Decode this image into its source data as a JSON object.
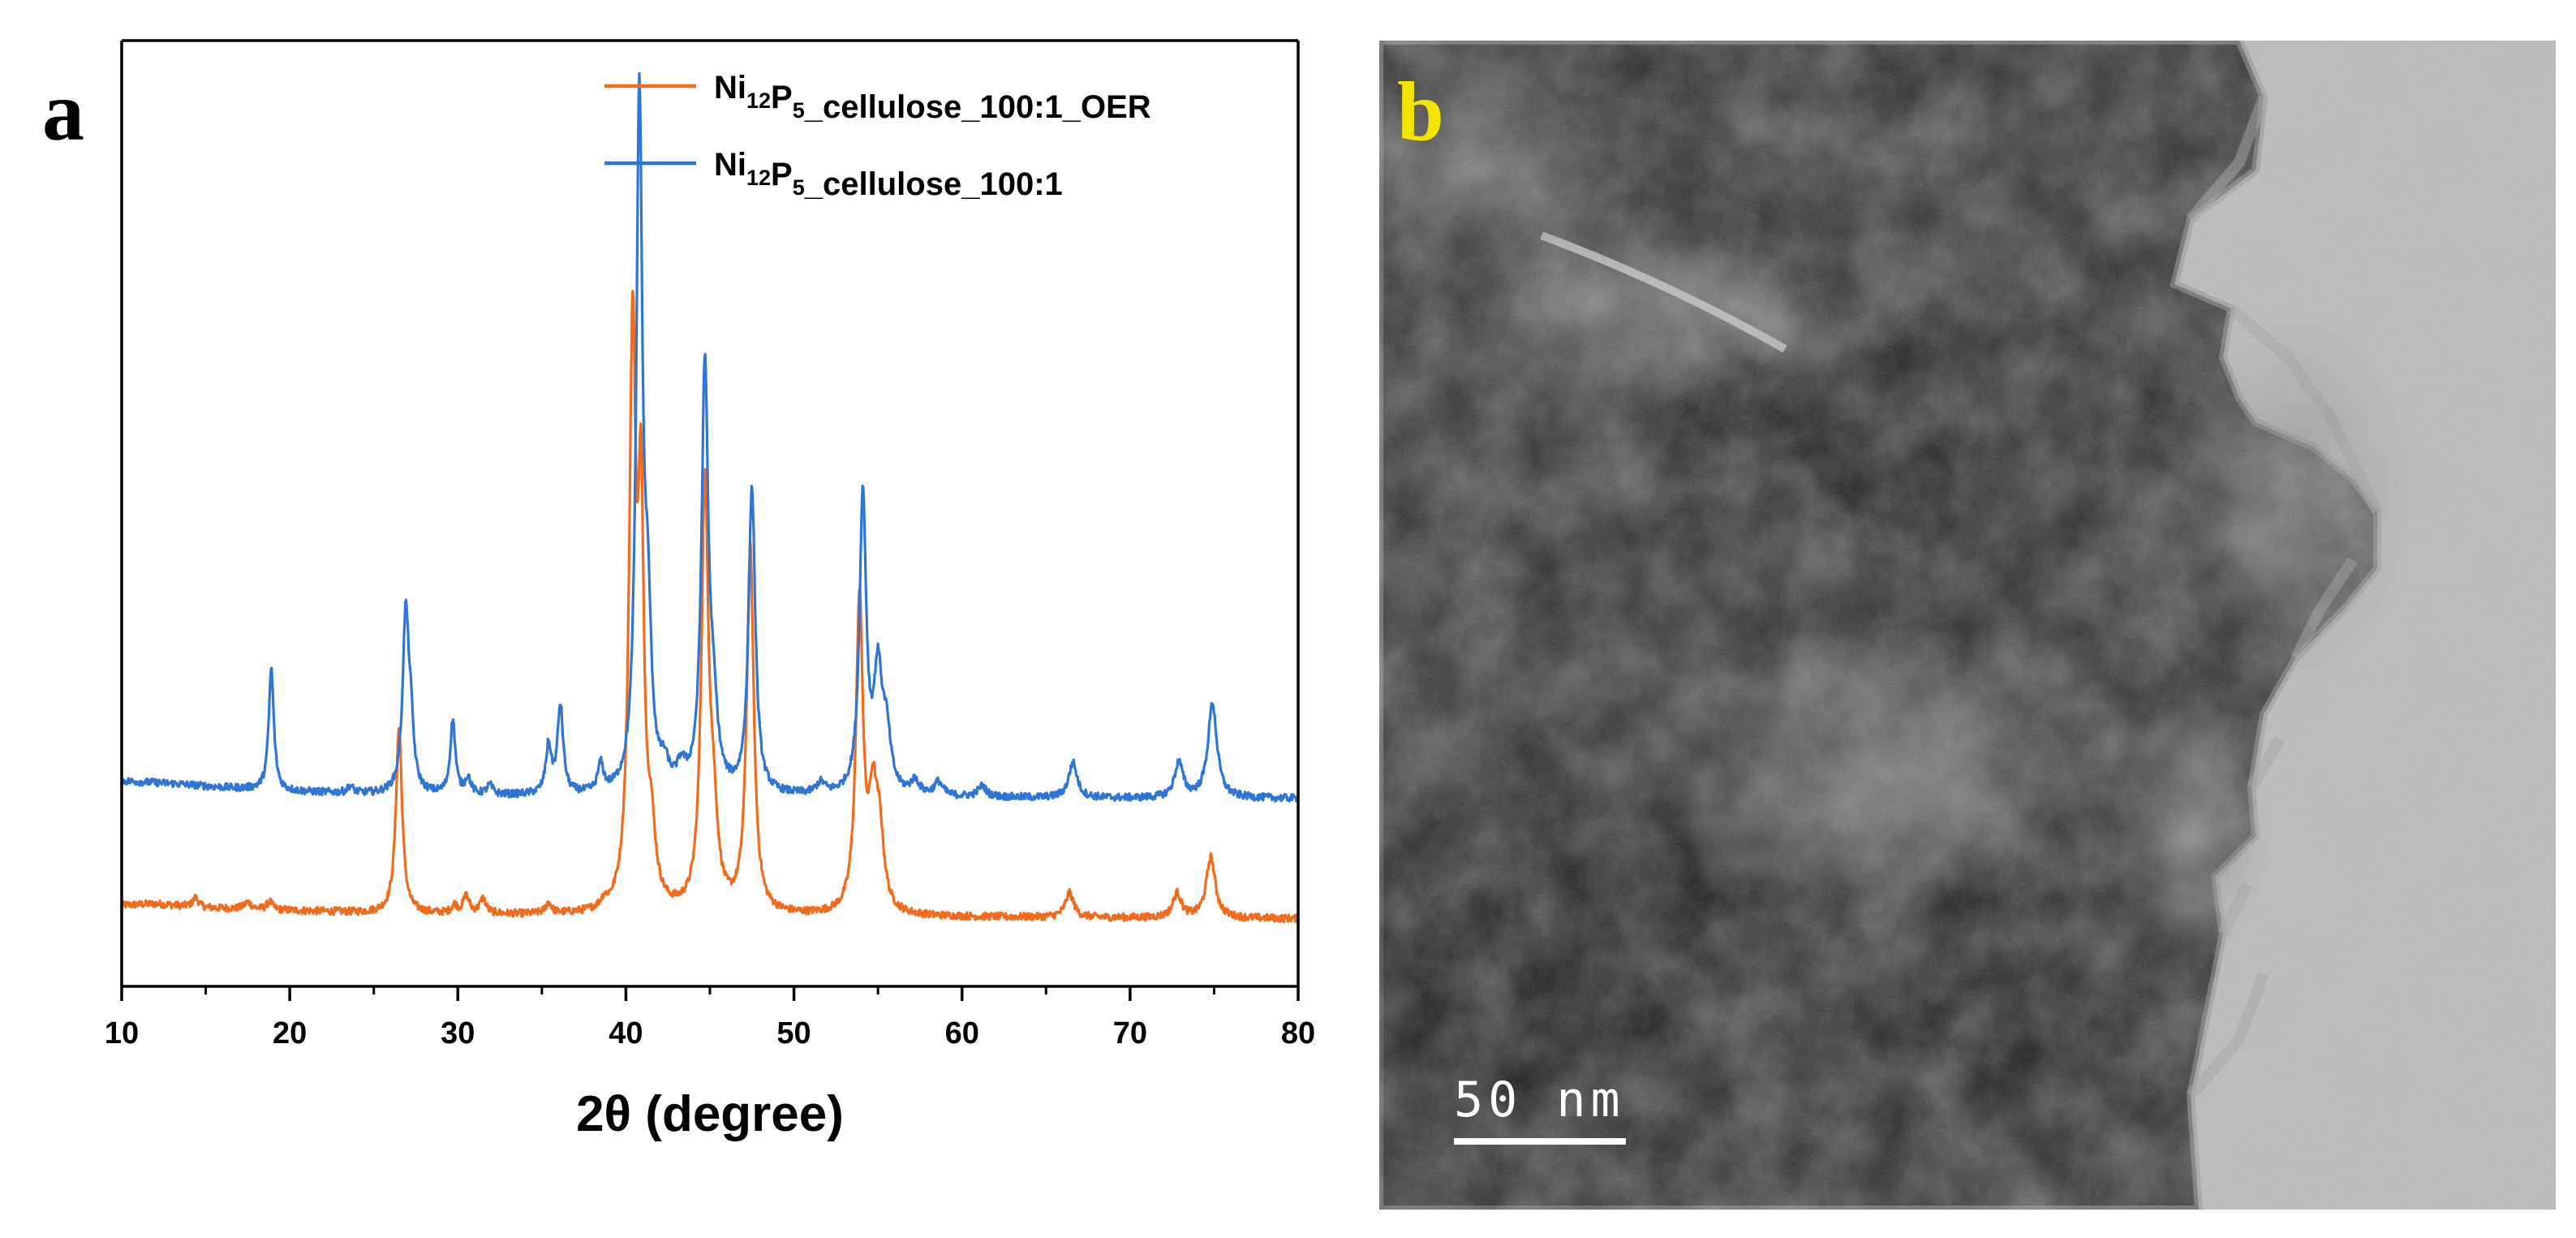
{
  "panels": {
    "a": {
      "letter": "a"
    },
    "b": {
      "letter": "b",
      "letter_color": "#f2e600",
      "scale_bar_label": "50 nm",
      "image": "tem-micrograph"
    }
  },
  "chart_data": {
    "type": "line",
    "xlabel": "2θ (degree)",
    "ylabel": "",
    "xlim": [
      10,
      80
    ],
    "xticks": [
      10,
      20,
      30,
      40,
      50,
      60,
      70,
      80
    ],
    "y_ticks_shown": false,
    "legend_position": "top-right",
    "series": [
      {
        "name": "Ni12P5_cellulose_100:1_OER",
        "legend": {
          "base": "Ni",
          "sub1": "12",
          "mid": "P",
          "sub2": "5",
          "tail": "_cellulose_100:1_OER"
        },
        "color": "#f26b1d",
        "baseline": 0.52,
        "background": [
          [
            10,
            0.6
          ],
          [
            12,
            0.61
          ],
          [
            15,
            0.58
          ],
          [
            20,
            0.56
          ],
          [
            25,
            0.54
          ],
          [
            30,
            0.53
          ],
          [
            35,
            0.525
          ],
          [
            40,
            0.52
          ],
          [
            50,
            0.515
          ],
          [
            60,
            0.51
          ],
          [
            70,
            0.505
          ],
          [
            80,
            0.5
          ]
        ],
        "peaks": [
          [
            14.4,
            0.07,
            0.2
          ],
          [
            17.5,
            0.05,
            0.25
          ],
          [
            18.8,
            0.06,
            0.2
          ],
          [
            26.5,
            1.38,
            0.22
          ],
          [
            29.8,
            0.06,
            0.2
          ],
          [
            30.5,
            0.13,
            0.22
          ],
          [
            31.5,
            0.11,
            0.22
          ],
          [
            35.4,
            0.08,
            0.2
          ],
          [
            38.7,
            0.05,
            0.2
          ],
          [
            40.4,
            4.2,
            0.24
          ],
          [
            40.9,
            2.7,
            0.2
          ],
          [
            41.5,
            0.5,
            0.3
          ],
          [
            44.7,
            3.1,
            0.25
          ],
          [
            45.2,
            0.6,
            0.3
          ],
          [
            47.4,
            2.7,
            0.25
          ],
          [
            53.9,
            2.3,
            0.25
          ],
          [
            54.7,
            0.75,
            0.3
          ],
          [
            55.1,
            0.5,
            0.3
          ],
          [
            66.4,
            0.18,
            0.3
          ],
          [
            72.8,
            0.18,
            0.3
          ],
          [
            74.8,
            0.45,
            0.32
          ]
        ]
      },
      {
        "name": "Ni12P5_cellulose_100:1",
        "legend": {
          "base": "Ni",
          "sub1": "12",
          "mid": "P",
          "sub2": "5",
          "tail": "_cellulose_100:1"
        },
        "color": "#2e75d6",
        "baseline": 1.4,
        "background": [
          [
            10,
            1.52
          ],
          [
            13,
            1.5
          ],
          [
            16,
            1.47
          ],
          [
            20,
            1.44
          ],
          [
            25,
            1.42
          ],
          [
            30,
            1.41
          ],
          [
            40,
            1.4
          ],
          [
            50,
            1.4
          ],
          [
            60,
            1.395
          ],
          [
            70,
            1.39
          ],
          [
            80,
            1.39
          ]
        ],
        "peaks": [
          [
            18.9,
            0.9,
            0.18
          ],
          [
            23.6,
            0.05,
            0.2
          ],
          [
            26.9,
            1.3,
            0.22
          ],
          [
            27.2,
            0.4,
            0.2
          ],
          [
            29.7,
            0.55,
            0.18
          ],
          [
            30.6,
            0.12,
            0.2
          ],
          [
            31.9,
            0.07,
            0.2
          ],
          [
            35.4,
            0.35,
            0.2
          ],
          [
            36.1,
            0.65,
            0.2
          ],
          [
            38.5,
            0.2,
            0.2
          ],
          [
            40.8,
            5.1,
            0.22
          ],
          [
            41.3,
            1.1,
            0.25
          ],
          [
            42.3,
            0.15,
            0.3
          ],
          [
            43.3,
            0.15,
            0.3
          ],
          [
            44.7,
            3.1,
            0.24
          ],
          [
            45.2,
            0.5,
            0.3
          ],
          [
            47.5,
            2.25,
            0.24
          ],
          [
            51.6,
            0.08,
            0.3
          ],
          [
            54.1,
            2.2,
            0.24
          ],
          [
            55.0,
            0.85,
            0.3
          ],
          [
            55.5,
            0.4,
            0.3
          ],
          [
            57.2,
            0.1,
            0.3
          ],
          [
            58.6,
            0.1,
            0.3
          ],
          [
            61.2,
            0.08,
            0.3
          ],
          [
            66.6,
            0.26,
            0.3
          ],
          [
            72.9,
            0.26,
            0.3
          ],
          [
            74.9,
            0.7,
            0.32
          ]
        ]
      }
    ]
  }
}
